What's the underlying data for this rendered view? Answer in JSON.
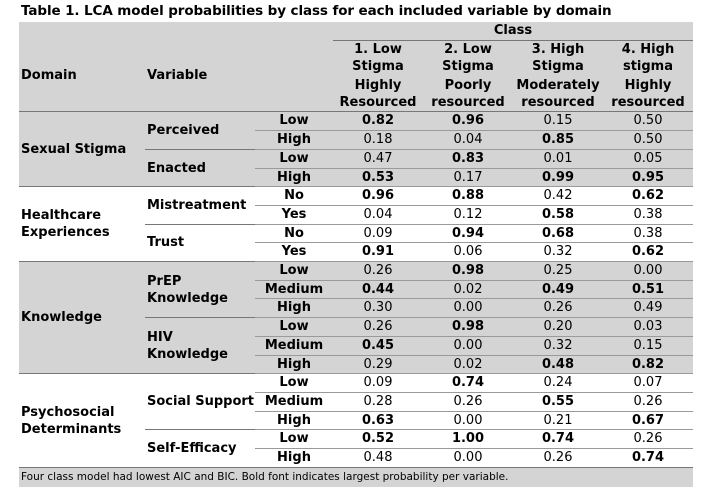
{
  "title": "Table 1. LCA model probabilities by class for each included variable by domain",
  "header": {
    "class_label": "Class",
    "domain_label": "Domain",
    "variable_label": "Variable",
    "classes": [
      {
        "name_line1": "1. Low",
        "name_line2": "Stigma",
        "sub_line1": "Highly",
        "sub_line2": "Resourced"
      },
      {
        "name_line1": "2. Low",
        "name_line2": "Stigma",
        "sub_line1": "Poorly",
        "sub_line2": "resourced"
      },
      {
        "name_line1": "3. High",
        "name_line2": "Stigma",
        "sub_line1": "Moderately",
        "sub_line2": "resourced"
      },
      {
        "name_line1": "4. High",
        "name_line2": "stigma",
        "sub_line1": "Highly",
        "sub_line2": "resourced"
      }
    ]
  },
  "rows": [
    {
      "domain": "Sexual Stigma",
      "variable": "Perceived",
      "level": "Low",
      "values": [
        "0.82",
        "0.96",
        "0.15",
        "0.50"
      ],
      "bold": [
        true,
        true,
        false,
        false
      ]
    },
    {
      "level": "High",
      "values": [
        "0.18",
        "0.04",
        "0.85",
        "0.50"
      ],
      "bold": [
        false,
        false,
        true,
        false
      ]
    },
    {
      "variable": "Enacted",
      "level": "Low",
      "values": [
        "0.47",
        "0.83",
        "0.01",
        "0.05"
      ],
      "bold": [
        false,
        true,
        false,
        false
      ]
    },
    {
      "level": "High",
      "values": [
        "0.53",
        "0.17",
        "0.99",
        "0.95"
      ],
      "bold": [
        true,
        false,
        true,
        true
      ]
    },
    {
      "domain": "Healthcare Experiences",
      "variable": "Mistreatment",
      "level": "No",
      "values": [
        "0.96",
        "0.88",
        "0.42",
        "0.62"
      ],
      "bold": [
        true,
        true,
        false,
        true
      ]
    },
    {
      "level": "Yes",
      "values": [
        "0.04",
        "0.12",
        "0.58",
        "0.38"
      ],
      "bold": [
        false,
        false,
        true,
        false
      ]
    },
    {
      "variable": "Trust",
      "level": "No",
      "values": [
        "0.09",
        "0.94",
        "0.68",
        "0.38"
      ],
      "bold": [
        false,
        true,
        true,
        false
      ]
    },
    {
      "level": "Yes",
      "values": [
        "0.91",
        "0.06",
        "0.32",
        "0.62"
      ],
      "bold": [
        true,
        false,
        false,
        true
      ]
    },
    {
      "domain": "Knowledge",
      "variable": "PrEP Knowledge",
      "level": "Low",
      "values": [
        "0.26",
        "0.98",
        "0.25",
        "0.00"
      ],
      "bold": [
        false,
        true,
        false,
        false
      ]
    },
    {
      "level": "Medium",
      "values": [
        "0.44",
        "0.02",
        "0.49",
        "0.51"
      ],
      "bold": [
        true,
        false,
        true,
        true
      ]
    },
    {
      "level": "High",
      "values": [
        "0.30",
        "0.00",
        "0.26",
        "0.49"
      ],
      "bold": [
        false,
        false,
        false,
        false
      ]
    },
    {
      "variable": "HIV Knowledge",
      "level": "Low",
      "values": [
        "0.26",
        "0.98",
        "0.20",
        "0.03"
      ],
      "bold": [
        false,
        true,
        false,
        false
      ]
    },
    {
      "level": "Medium",
      "values": [
        "0.45",
        "0.00",
        "0.32",
        "0.15"
      ],
      "bold": [
        true,
        false,
        false,
        false
      ]
    },
    {
      "level": "High",
      "values": [
        "0.29",
        "0.02",
        "0.48",
        "0.82"
      ],
      "bold": [
        false,
        false,
        true,
        true
      ]
    },
    {
      "domain": "Psychosocial Determinants",
      "variable": "Social Support",
      "level": "Low",
      "values": [
        "0.09",
        "0.74",
        "0.24",
        "0.07"
      ],
      "bold": [
        false,
        true,
        false,
        false
      ]
    },
    {
      "level": "Medium",
      "values": [
        "0.28",
        "0.26",
        "0.55",
        "0.26"
      ],
      "bold": [
        false,
        false,
        true,
        false
      ]
    },
    {
      "level": "High",
      "values": [
        "0.63",
        "0.00",
        "0.21",
        "0.67"
      ],
      "bold": [
        true,
        false,
        false,
        true
      ]
    },
    {
      "variable": "Self-Efficacy",
      "level": "Low",
      "values": [
        "0.52",
        "1.00",
        "0.74",
        "0.26"
      ],
      "bold": [
        true,
        true,
        true,
        false
      ]
    },
    {
      "level": "High",
      "values": [
        "0.48",
        "0.00",
        "0.26",
        "0.74"
      ],
      "bold": [
        false,
        false,
        false,
        true
      ]
    }
  ],
  "footnote": "Four class model had lowest AIC and BIC. Bold font indicates largest probability per variable."
}
